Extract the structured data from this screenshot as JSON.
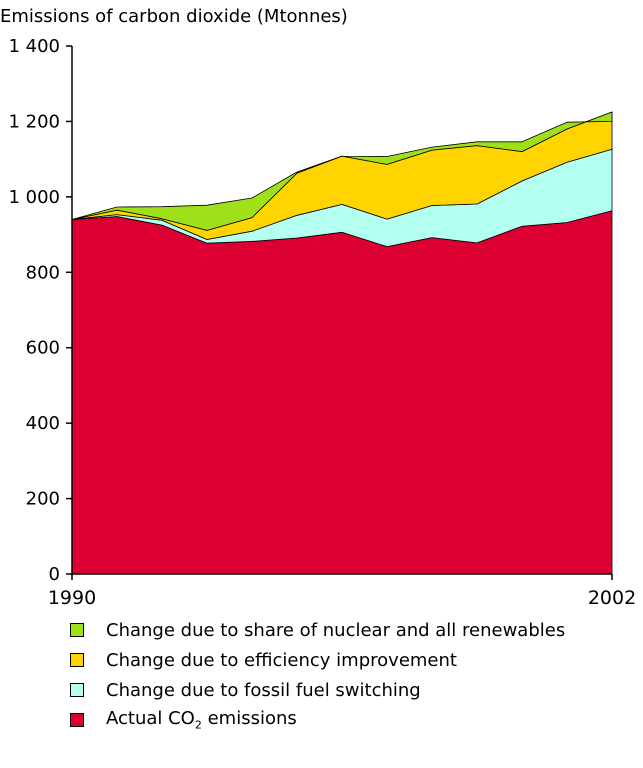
{
  "chart_data": {
    "type": "area",
    "stacked": true,
    "title": "Emissions of carbon dioxide (Mtonnes)",
    "x": [
      1990,
      1991,
      1992,
      1993,
      1994,
      1995,
      1996,
      1997,
      1998,
      1999,
      2000,
      2001,
      2002
    ],
    "x_tick_labels": [
      "1990",
      "2002"
    ],
    "ylim": [
      0,
      1400
    ],
    "y_ticks": [
      0,
      200,
      400,
      600,
      800,
      1000,
      1200,
      1400
    ],
    "y_tick_labels": [
      "0",
      "200",
      "400",
      "600",
      "800",
      "1 000",
      "1 200",
      "1 400"
    ],
    "series": [
      {
        "name": "Actual CO2 emissions",
        "color": "#dc0032",
        "values": [
          940,
          948,
          925,
          877,
          882,
          891,
          906,
          868,
          892,
          878,
          922,
          932,
          963
        ]
      },
      {
        "name": "Change due to fossil fuel switching",
        "color": "#b3fff0",
        "values": [
          0,
          5,
          13,
          10,
          27,
          60,
          74,
          73,
          85,
          103,
          120,
          160,
          163
        ]
      },
      {
        "name": "Change due to efficiency improvement",
        "color": "#ffd400",
        "values": [
          0,
          12,
          4,
          24,
          36,
          112,
          128,
          145,
          147,
          155,
          78,
          88,
          99
        ]
      },
      {
        "name": "Change due to share of nuclear and all renewables",
        "color": "#a0e01a",
        "values": [
          0,
          8,
          32,
          67,
          52,
          3,
          0,
          21,
          8,
          10,
          26,
          18,
          -25
        ]
      }
    ],
    "legend_order": [
      3,
      2,
      1,
      0
    ],
    "legend_placement": "bottom",
    "grid": false
  }
}
